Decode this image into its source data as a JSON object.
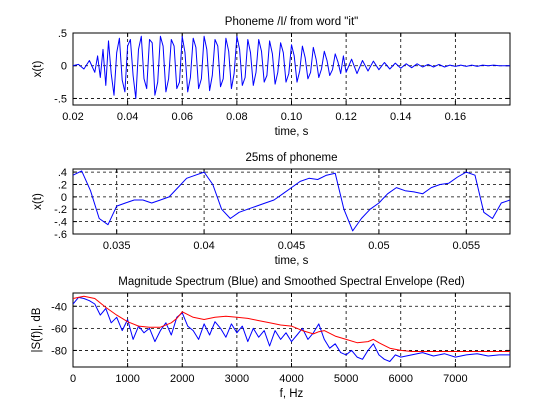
{
  "chart_data": [
    {
      "type": "line",
      "title": "Phoneme /I/ from word \"it\"",
      "xlabel": "time, s",
      "ylabel": "x(t)",
      "xlim": [
        0.02,
        0.18
      ],
      "ylim": [
        -0.6,
        0.5
      ],
      "xticks": [
        0.02,
        0.04,
        0.06,
        0.08,
        0.1,
        0.12,
        0.14,
        0.16
      ],
      "yticks": [
        -0.5,
        0,
        0.5
      ],
      "grid": true,
      "series": [
        {
          "color": "#0000ff",
          "x": [
            0.02,
            0.022,
            0.024,
            0.026,
            0.028,
            0.029,
            0.03,
            0.031,
            0.032,
            0.033,
            0.034,
            0.035,
            0.036,
            0.037,
            0.038,
            0.039,
            0.04,
            0.041,
            0.042,
            0.043,
            0.044,
            0.045,
            0.046,
            0.047,
            0.048,
            0.049,
            0.05,
            0.051,
            0.052,
            0.053,
            0.054,
            0.055,
            0.056,
            0.057,
            0.058,
            0.059,
            0.06,
            0.061,
            0.062,
            0.063,
            0.064,
            0.065,
            0.066,
            0.067,
            0.068,
            0.069,
            0.07,
            0.071,
            0.072,
            0.073,
            0.074,
            0.075,
            0.076,
            0.077,
            0.078,
            0.079,
            0.08,
            0.081,
            0.082,
            0.083,
            0.084,
            0.085,
            0.086,
            0.087,
            0.088,
            0.089,
            0.09,
            0.091,
            0.092,
            0.093,
            0.094,
            0.095,
            0.096,
            0.097,
            0.098,
            0.099,
            0.1,
            0.101,
            0.102,
            0.103,
            0.104,
            0.105,
            0.106,
            0.107,
            0.108,
            0.109,
            0.11,
            0.111,
            0.112,
            0.113,
            0.114,
            0.115,
            0.116,
            0.117,
            0.118,
            0.119,
            0.12,
            0.122,
            0.124,
            0.126,
            0.128,
            0.13,
            0.132,
            0.134,
            0.136,
            0.138,
            0.14,
            0.142,
            0.144,
            0.146,
            0.148,
            0.15,
            0.152,
            0.154,
            0.156,
            0.158,
            0.16,
            0.162,
            0.164,
            0.166,
            0.168,
            0.17,
            0.172,
            0.174,
            0.176,
            0.178,
            0.18
          ],
          "y": [
            0.0,
            0.02,
            -0.05,
            0.08,
            -0.1,
            0.15,
            -0.18,
            0.25,
            -0.3,
            0.38,
            -0.12,
            -0.45,
            0.2,
            0.42,
            -0.22,
            -0.4,
            0.3,
            0.4,
            -0.15,
            -0.5,
            0.25,
            0.45,
            -0.2,
            -0.35,
            0.4,
            0.35,
            -0.45,
            -0.25,
            0.45,
            0.3,
            -0.4,
            -0.2,
            0.4,
            0.3,
            -0.35,
            -0.25,
            0.45,
            0.2,
            -0.4,
            -0.18,
            0.42,
            0.28,
            -0.35,
            -0.2,
            0.45,
            0.25,
            -0.38,
            -0.15,
            0.4,
            0.3,
            -0.32,
            -0.2,
            0.42,
            0.22,
            -0.35,
            -0.12,
            0.45,
            0.25,
            -0.3,
            -0.18,
            0.4,
            0.2,
            -0.3,
            -0.1,
            0.4,
            0.22,
            -0.25,
            -0.15,
            0.38,
            0.18,
            -0.28,
            -0.1,
            0.35,
            0.2,
            -0.25,
            -0.12,
            0.32,
            0.15,
            -0.25,
            -0.08,
            0.3,
            0.12,
            -0.2,
            -0.1,
            0.28,
            0.1,
            -0.18,
            -0.05,
            0.22,
            0.08,
            -0.15,
            -0.06,
            0.18,
            0.06,
            -0.12,
            0.15,
            -0.1,
            0.1,
            -0.12,
            0.08,
            -0.08,
            0.07,
            -0.06,
            0.05,
            -0.05,
            0.04,
            -0.04,
            0.03,
            -0.03,
            0.03,
            -0.02,
            0.02,
            -0.02,
            0.02,
            -0.02,
            0.01,
            -0.01,
            0.01,
            -0.01,
            0.01,
            -0.01,
            0.01,
            0.0,
            0.01,
            0.0,
            0.0,
            0.0
          ]
        }
      ]
    },
    {
      "type": "line",
      "title": "25ms of phoneme",
      "xlabel": "time, s",
      "ylabel": "x(t)",
      "xlim": [
        0.0325,
        0.0575
      ],
      "ylim": [
        -0.6,
        0.45
      ],
      "xticks": [
        0.035,
        0.04,
        0.045,
        0.05,
        0.055
      ],
      "yticks": [
        0.4,
        0.2,
        0,
        -0.2,
        -0.4,
        -0.6
      ],
      "grid": true,
      "series": [
        {
          "color": "#0000ff",
          "x": [
            0.0325,
            0.033,
            0.0335,
            0.034,
            0.0345,
            0.035,
            0.0355,
            0.036,
            0.0365,
            0.037,
            0.0375,
            0.038,
            0.0385,
            0.039,
            0.0395,
            0.04,
            0.0405,
            0.041,
            0.0415,
            0.042,
            0.0425,
            0.043,
            0.0435,
            0.044,
            0.0445,
            0.045,
            0.0455,
            0.046,
            0.0465,
            0.047,
            0.0475,
            0.048,
            0.0485,
            0.049,
            0.0495,
            0.05,
            0.0505,
            0.051,
            0.0515,
            0.052,
            0.0525,
            0.053,
            0.0535,
            0.054,
            0.0545,
            0.055,
            0.0555,
            0.056,
            0.0565,
            0.057,
            0.0575
          ],
          "y": [
            0.35,
            0.42,
            0.1,
            -0.35,
            -0.45,
            -0.15,
            -0.1,
            -0.05,
            -0.05,
            -0.1,
            -0.05,
            0.0,
            0.15,
            0.3,
            0.35,
            0.4,
            0.2,
            -0.2,
            -0.35,
            -0.25,
            -0.2,
            -0.15,
            -0.1,
            -0.05,
            0.05,
            0.15,
            0.25,
            0.3,
            0.28,
            0.35,
            0.38,
            -0.2,
            -0.55,
            -0.35,
            -0.2,
            -0.1,
            0.05,
            0.15,
            0.1,
            0.08,
            0.05,
            0.15,
            0.2,
            0.22,
            0.32,
            0.4,
            0.35,
            -0.25,
            -0.35,
            -0.1,
            -0.05
          ]
        }
      ]
    },
    {
      "type": "line",
      "title": "Magnitude Spectrum (Blue) and Smoothed Spectral Envelope (Red)",
      "xlabel": "f, Hz",
      "ylabel": "|S(f)|, dB",
      "xlim": [
        0,
        8000
      ],
      "ylim": [
        -95,
        -28
      ],
      "xticks": [
        0,
        1000,
        2000,
        3000,
        4000,
        5000,
        6000,
        7000
      ],
      "yticks": [
        -40,
        -60,
        -80
      ],
      "grid": true,
      "series": [
        {
          "name": "Magnitude Spectrum",
          "color": "#0000ff",
          "x": [
            0,
            100,
            200,
            300,
            400,
            500,
            600,
            700,
            800,
            900,
            1000,
            1100,
            1200,
            1300,
            1400,
            1500,
            1600,
            1700,
            1800,
            1900,
            2000,
            2100,
            2200,
            2300,
            2400,
            2500,
            2600,
            2700,
            2800,
            2900,
            3000,
            3100,
            3200,
            3300,
            3400,
            3500,
            3600,
            3700,
            3800,
            3900,
            4000,
            4100,
            4200,
            4300,
            4400,
            4500,
            4600,
            4700,
            4800,
            4900,
            5000,
            5100,
            5200,
            5300,
            5400,
            5500,
            5600,
            5700,
            5800,
            5900,
            6000,
            6200,
            6400,
            6600,
            6800,
            7000,
            7200,
            7400,
            7600,
            7800,
            8000
          ],
          "y": [
            -38,
            -32,
            -33,
            -35,
            -38,
            -48,
            -42,
            -55,
            -50,
            -62,
            -52,
            -70,
            -58,
            -64,
            -60,
            -72,
            -62,
            -55,
            -66,
            -50,
            -46,
            -58,
            -62,
            -70,
            -56,
            -66,
            -54,
            -60,
            -68,
            -56,
            -64,
            -58,
            -72,
            -60,
            -68,
            -62,
            -76,
            -62,
            -70,
            -64,
            -72,
            -66,
            -60,
            -70,
            -64,
            -56,
            -70,
            -78,
            -74,
            -82,
            -84,
            -80,
            -86,
            -88,
            -80,
            -74,
            -84,
            -88,
            -90,
            -84,
            -86,
            -84,
            -82,
            -85,
            -83,
            -86,
            -84,
            -83,
            -85,
            -84,
            -84
          ]
        },
        {
          "name": "Smoothed Spectral Envelope",
          "color": "#ff0000",
          "x": [
            0,
            200,
            400,
            600,
            800,
            1000,
            1200,
            1400,
            1600,
            1800,
            1900,
            2000,
            2200,
            2400,
            2600,
            2800,
            3000,
            3200,
            3400,
            3600,
            3800,
            4000,
            4200,
            4400,
            4500,
            4600,
            4800,
            5000,
            5200,
            5400,
            5500,
            5600,
            5800,
            6000,
            6200,
            6400,
            6600,
            6800,
            7000,
            7500,
            8000
          ],
          "y": [
            -33,
            -31,
            -33,
            -41,
            -48,
            -54,
            -58,
            -59,
            -59,
            -55,
            -51,
            -45,
            -50,
            -52,
            -50,
            -49,
            -50,
            -51,
            -53,
            -55,
            -57,
            -58,
            -62,
            -65,
            -63,
            -62,
            -67,
            -70,
            -73,
            -72,
            -70,
            -73,
            -78,
            -80,
            -81,
            -81,
            -81,
            -81,
            -81,
            -81,
            -81
          ]
        }
      ]
    }
  ]
}
